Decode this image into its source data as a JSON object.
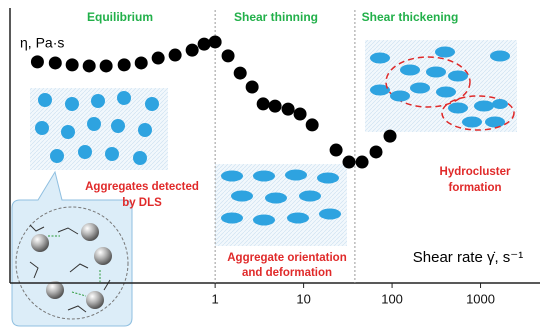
{
  "chart_data": {
    "type": "scatter",
    "y_label": "η, Pa·s",
    "x_label": "Shear rate γ̇, s⁻¹",
    "regions": [
      "Equilibrium",
      "Shear thinning",
      "Shear thickening"
    ],
    "annotations": [
      [
        "Aggregates detected",
        "by DLS"
      ],
      [
        "Aggregate orientation",
        "and deformation"
      ],
      [
        "Hydrocluster",
        "formation"
      ]
    ],
    "x_scale": "log",
    "xlim": [
      0.0048,
      4700
    ],
    "xticks": [
      1,
      10,
      100,
      1000
    ],
    "ylim": [
      0,
      100
    ],
    "dividers": [
      1,
      38
    ],
    "color": "#000000",
    "x": [
      0.0098,
      0.0156,
      0.0242,
      0.0377,
      0.0586,
      0.0937,
      0.146,
      0.227,
      0.353,
      0.55,
      0.751,
      1,
      1.4,
      1.92,
      2.62,
      3.49,
      4.76,
      6.68,
      9.12,
      12.5,
      23.3,
      32.6,
      45.8,
      65.9,
      94.8
    ],
    "values": [
      81,
      80.6,
      79.9,
      79.5,
      79.5,
      79.9,
      80.6,
      82.4,
      83.5,
      85.3,
      87.5,
      88.3,
      83.2,
      76.9,
      71.8,
      65.6,
      64.8,
      63.7,
      61.9,
      57.9,
      48.7,
      44.3,
      44.3,
      48,
      53.8
    ]
  }
}
